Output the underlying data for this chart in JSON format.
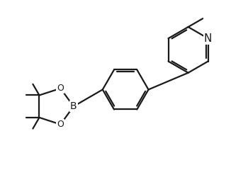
{
  "line_color": "#1a1a1a",
  "bg_color": "#ffffff",
  "line_width": 1.6,
  "font_size": 10,
  "fig_width": 3.5,
  "fig_height": 2.4,
  "dpi": 100,
  "xlim": [
    0.0,
    7.5
  ],
  "ylim": [
    0.0,
    5.5
  ]
}
